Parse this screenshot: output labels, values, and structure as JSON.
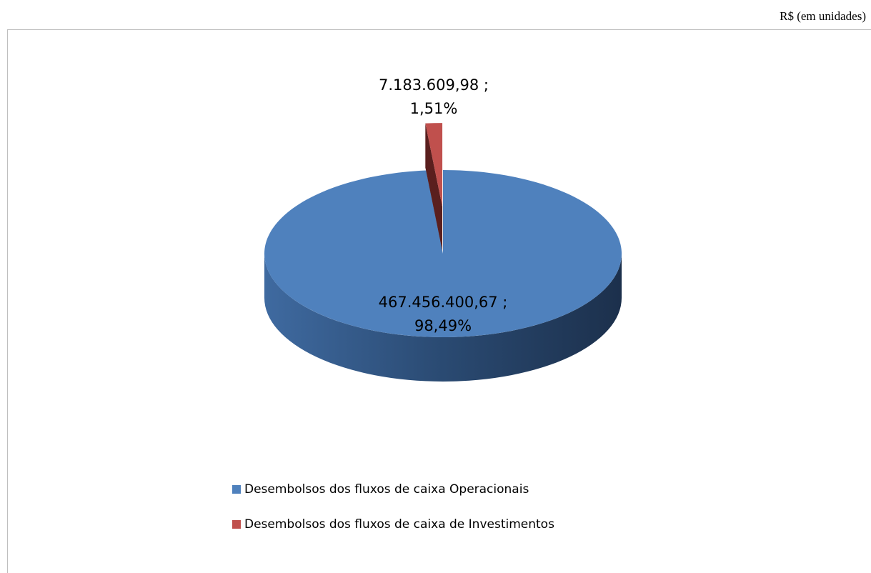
{
  "chart_data": {
    "type": "pie",
    "unit_note": "R$ (em unidades)",
    "categories": [
      "Desembolsos dos fluxos de caixa Operacionais",
      "Desembolsos dos fluxos de caixa de Investimentos"
    ],
    "values": [
      467456400.67,
      7183609.98
    ],
    "value_labels": [
      "467.456.400,67 ;\n98,49%",
      "7.183.609,98 ;\n1,51%"
    ],
    "colors": [
      "#4f81bd",
      "#c0504d"
    ],
    "legend": "bottom-left"
  }
}
